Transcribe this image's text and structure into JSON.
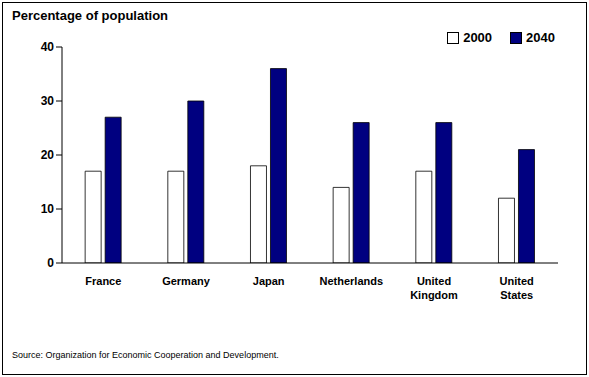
{
  "chart_data": {
    "type": "bar",
    "title": "Percentage of population",
    "categories": [
      "France",
      "Germany",
      "Japan",
      "Netherlands",
      "United Kingdom",
      "United States"
    ],
    "series": [
      {
        "name": "2000",
        "color": "#ffffff",
        "values": [
          17,
          17,
          18,
          14,
          17,
          12
        ]
      },
      {
        "name": "2040",
        "color": "#000080",
        "values": [
          27,
          30,
          36,
          26,
          26,
          21
        ]
      }
    ],
    "ylim": [
      0,
      40
    ],
    "yticks": [
      0,
      10,
      20,
      30,
      40
    ],
    "grid": false,
    "legend": "top-right",
    "annotations": [
      "Source: Organization for Economic Cooperation and Development."
    ]
  }
}
